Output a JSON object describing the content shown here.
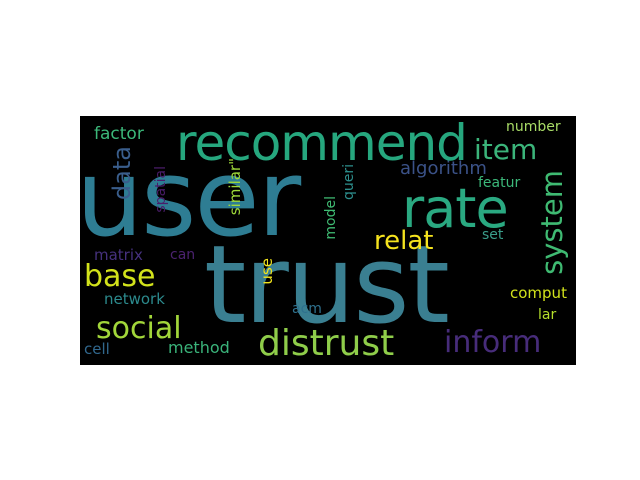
{
  "word_cloud": {
    "background": "#000000",
    "words": [
      {
        "id": "user",
        "text": "user",
        "color": "#2e7d93"
      },
      {
        "id": "trust",
        "text": "trust",
        "color": "#3a7f91"
      },
      {
        "id": "recommend",
        "text": "recommend",
        "color": "#26a77e"
      },
      {
        "id": "rate",
        "text": "rate",
        "color": "#2aa981"
      },
      {
        "id": "distrust",
        "text": "distrust",
        "color": "#8fcd4a"
      },
      {
        "id": "social",
        "text": "social",
        "color": "#a2d63a"
      },
      {
        "id": "inform",
        "text": "inform",
        "color": "#472c7a"
      },
      {
        "id": "item",
        "text": "item",
        "color": "#3bb47a"
      },
      {
        "id": "system",
        "text": "system",
        "color": "#3fba72"
      },
      {
        "id": "relat",
        "text": "relat",
        "color": "#f5e31e"
      },
      {
        "id": "base",
        "text": "base",
        "color": "#d2e21b"
      },
      {
        "id": "data",
        "text": "data",
        "color": "#3a5e8c"
      },
      {
        "id": "algorithm",
        "text": "algorithm",
        "color": "#3b5288"
      },
      {
        "id": "factor",
        "text": "factor",
        "color": "#3cb87a"
      },
      {
        "id": "number",
        "text": "number",
        "color": "#a9dc67"
      },
      {
        "id": "spatial",
        "text": "spatial",
        "color": "#4a1c6a"
      },
      {
        "id": "similar",
        "text": "similar\"",
        "color": "#9ed93a"
      },
      {
        "id": "model",
        "text": "model",
        "color": "#3fbc73"
      },
      {
        "id": "queri",
        "text": "queri",
        "color": "#2d8f8d"
      },
      {
        "id": "featur",
        "text": "featur",
        "color": "#3cb87a"
      },
      {
        "id": "set",
        "text": "set",
        "color": "#3a9d8a"
      },
      {
        "id": "matrix",
        "text": "matrix",
        "color": "#46317e"
      },
      {
        "id": "can",
        "text": "can",
        "color": "#4b2270"
      },
      {
        "id": "use",
        "text": "use",
        "color": "#f2e51d"
      },
      {
        "id": "network",
        "text": "network",
        "color": "#2c8a8d"
      },
      {
        "id": "acm",
        "text": "acm",
        "color": "#2f718e"
      },
      {
        "id": "comput",
        "text": "comput",
        "color": "#d2e21b"
      },
      {
        "id": "lar",
        "text": "lar",
        "color": "#b5de2b"
      },
      {
        "id": "cell",
        "text": "cell",
        "color": "#31688e"
      },
      {
        "id": "method",
        "text": "method",
        "color": "#3ab37a"
      }
    ]
  }
}
